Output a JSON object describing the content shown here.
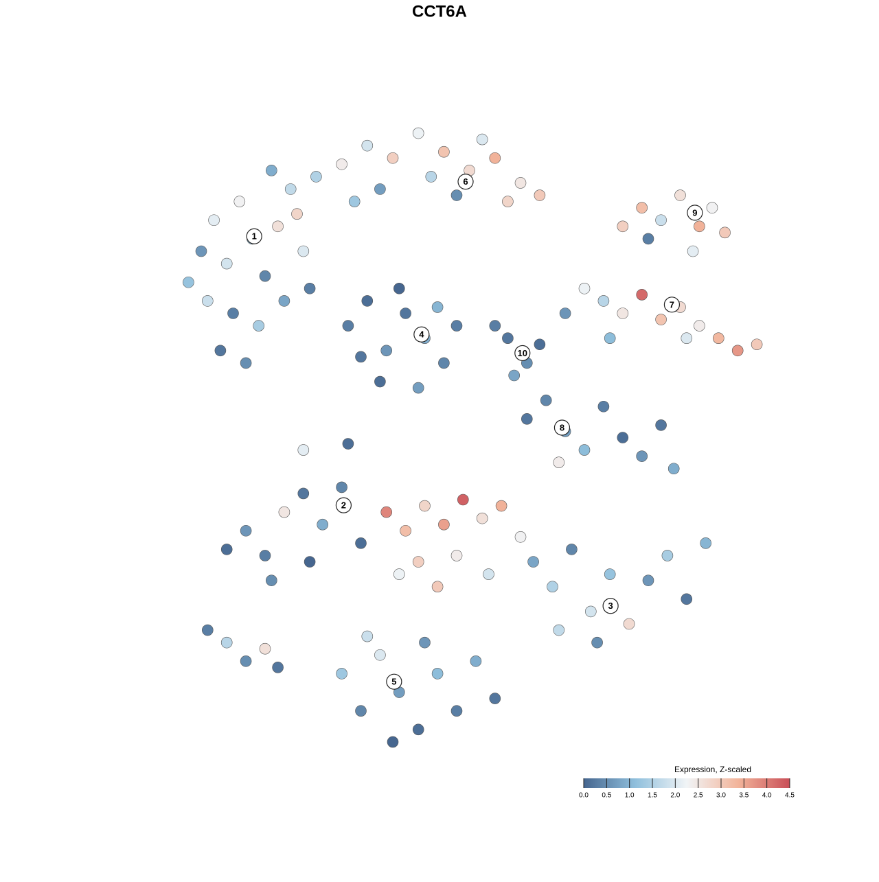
{
  "chart_data": {
    "type": "scatter",
    "title": "CCT6A",
    "xlim": [
      0,
      100
    ],
    "ylim": [
      0,
      100
    ],
    "colorbar": {
      "title": "Expression, Z-scaled",
      "clim": [
        0,
        4.5
      ],
      "colormap": [
        "#46668f",
        "#8fbfdc",
        "#f1f4f6",
        "#f2b49a",
        "#c94f58"
      ],
      "ticks": [
        {
          "value": 0,
          "label": "0.0"
        },
        0.5,
        {
          "value": 1,
          "label": "1.0"
        },
        1.5,
        {
          "value": 2,
          "label": "2.0"
        },
        2.5,
        {
          "value": 3,
          "label": "3.0"
        },
        3.5,
        {
          "value": 4,
          "label": "4.0"
        },
        4.5
      ]
    },
    "clusters": [
      {
        "label": "1",
        "x": 18.3,
        "y": 82.4
      },
      {
        "label": "2",
        "x": 32.3,
        "y": 39.1
      },
      {
        "label": "3",
        "x": 74.1,
        "y": 22.9
      },
      {
        "label": "4",
        "x": 44.5,
        "y": 66.6
      },
      {
        "label": "5",
        "x": 40.2,
        "y": 10.7
      },
      {
        "label": "6",
        "x": 51.4,
        "y": 91.2
      },
      {
        "label": "7",
        "x": 83.7,
        "y": 71.4
      },
      {
        "label": "8",
        "x": 66.5,
        "y": 51.6
      },
      {
        "label": "9",
        "x": 87.3,
        "y": 86.2
      },
      {
        "label": "10",
        "x": 60.3,
        "y": 63.6
      }
    ],
    "x": [
      8,
      10,
      12,
      14,
      16,
      18,
      20,
      22,
      24,
      26,
      15,
      19,
      23,
      13,
      17,
      25,
      28,
      11,
      21,
      27,
      32,
      36,
      40,
      44,
      48,
      52,
      56,
      60,
      63,
      46,
      38,
      54,
      58,
      34,
      50,
      76,
      79,
      82,
      85,
      88,
      90,
      92,
      87,
      80,
      70,
      73,
      76,
      79,
      82,
      85,
      88,
      91,
      94,
      97,
      86,
      74,
      67,
      33,
      36,
      39,
      42,
      45,
      48,
      38,
      44,
      41,
      47,
      35,
      50,
      58,
      61,
      63,
      59,
      56,
      61,
      64,
      67,
      70,
      73,
      76,
      79,
      82,
      84,
      66,
      14,
      17,
      20,
      23,
      26,
      29,
      32,
      35,
      21,
      27,
      39,
      42,
      45,
      48,
      51,
      54,
      57,
      60,
      44,
      50,
      55,
      47,
      41,
      62,
      65,
      68,
      71,
      74,
      77,
      80,
      83,
      86,
      89,
      66,
      72,
      32,
      35,
      38,
      41,
      44,
      47,
      50,
      53,
      56,
      36,
      45,
      40,
      11,
      14,
      17,
      20,
      22,
      26,
      33
    ],
    "y": [
      75,
      80,
      85,
      78,
      88,
      82,
      76,
      84,
      90,
      80,
      70,
      68,
      72,
      64,
      62,
      86,
      92,
      72,
      93,
      74,
      94,
      97,
      95,
      99,
      96,
      93,
      95,
      91,
      89,
      92,
      90,
      98,
      88,
      88,
      89,
      84,
      87,
      85,
      89,
      84,
      87,
      83,
      80,
      82,
      74,
      72,
      70,
      73,
      69,
      71,
      68,
      66,
      64,
      65,
      66,
      66,
      70,
      68,
      72,
      64,
      70,
      66,
      62,
      59,
      58,
      74,
      71,
      63,
      68,
      66,
      62,
      65,
      60,
      68,
      53,
      56,
      51,
      48,
      55,
      50,
      47,
      52,
      45,
      46,
      32,
      35,
      31,
      38,
      41,
      36,
      42,
      33,
      27,
      30,
      38,
      35,
      39,
      36,
      40,
      37,
      39,
      34,
      30,
      31,
      28,
      26,
      28,
      30,
      26,
      32,
      22,
      28,
      20,
      27,
      31,
      24,
      33,
      19,
      17,
      12,
      6,
      15,
      9,
      3,
      12,
      6,
      14,
      8,
      18,
      17,
      1,
      19,
      17,
      14,
      16,
      13,
      48,
      49
    ],
    "values": [
      1.2,
      0.6,
      2.1,
      1.9,
      2.3,
      1.1,
      0.4,
      2.6,
      1.7,
      2.0,
      0.3,
      1.4,
      0.8,
      0.2,
      0.5,
      2.8,
      1.5,
      1.8,
      0.9,
      0.3,
      2.4,
      1.9,
      2.9,
      2.2,
      3.1,
      2.7,
      3.4,
      2.5,
      3.0,
      1.6,
      0.7,
      2.0,
      2.8,
      1.3,
      0.5,
      2.9,
      3.2,
      1.8,
      2.6,
      3.4,
      2.3,
      3.0,
      2.1,
      0.3,
      2.2,
      1.6,
      2.5,
      4.2,
      3.1,
      2.7,
      2.4,
      3.3,
      3.7,
      3.0,
      2.0,
      1.1,
      0.6,
      0.3,
      0.1,
      0.6,
      0.2,
      0.9,
      0.4,
      0.1,
      0.7,
      0.0,
      1.0,
      0.2,
      0.3,
      0.2,
      0.5,
      0.1,
      0.8,
      0.3,
      0.2,
      0.4,
      0.7,
      1.1,
      0.3,
      0.1,
      0.6,
      0.2,
      0.9,
      2.4,
      0.1,
      0.6,
      0.3,
      2.5,
      0.2,
      0.9,
      0.4,
      0.1,
      0.5,
      0.0,
      3.9,
      3.2,
      2.8,
      3.6,
      4.3,
      2.6,
      3.4,
      2.3,
      2.9,
      2.4,
      1.9,
      3.0,
      2.2,
      0.8,
      1.5,
      0.4,
      1.9,
      1.2,
      2.7,
      0.6,
      1.4,
      0.2,
      1.0,
      1.7,
      0.5,
      1.3,
      0.4,
      2.0,
      0.7,
      0.1,
      1.1,
      0.3,
      0.9,
      0.2,
      1.8,
      0.6,
      0.0,
      0.3,
      1.6,
      0.5,
      2.6,
      0.2,
      2.1,
      0.1
    ]
  }
}
